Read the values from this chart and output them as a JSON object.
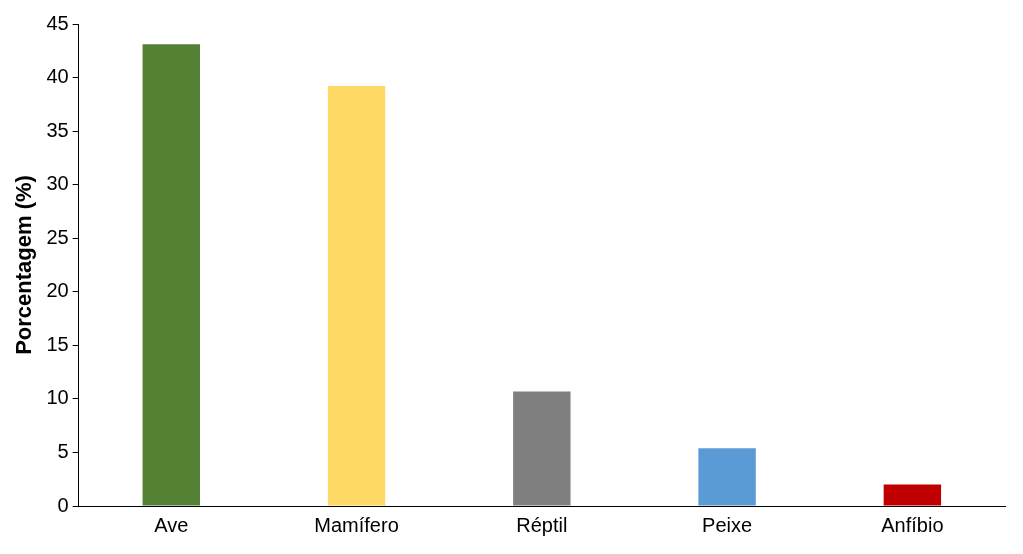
{
  "chart_data": {
    "type": "bar",
    "ylabel": "Porcentagem (%)",
    "categories": [
      "Ave",
      "Mamífero",
      "Réptil",
      "Peixe",
      "Anfíbio"
    ],
    "values": [
      43.1,
      39.2,
      10.7,
      5.4,
      2.0
    ],
    "colors": [
      "#548235",
      "#ffd966",
      "#7f7f7f",
      "#5b9bd5",
      "#c00000"
    ],
    "ylim": [
      0,
      45
    ],
    "yticks": [
      0,
      5,
      10,
      15,
      20,
      25,
      30,
      35,
      40,
      45
    ],
    "grid": false,
    "legend": false
  }
}
